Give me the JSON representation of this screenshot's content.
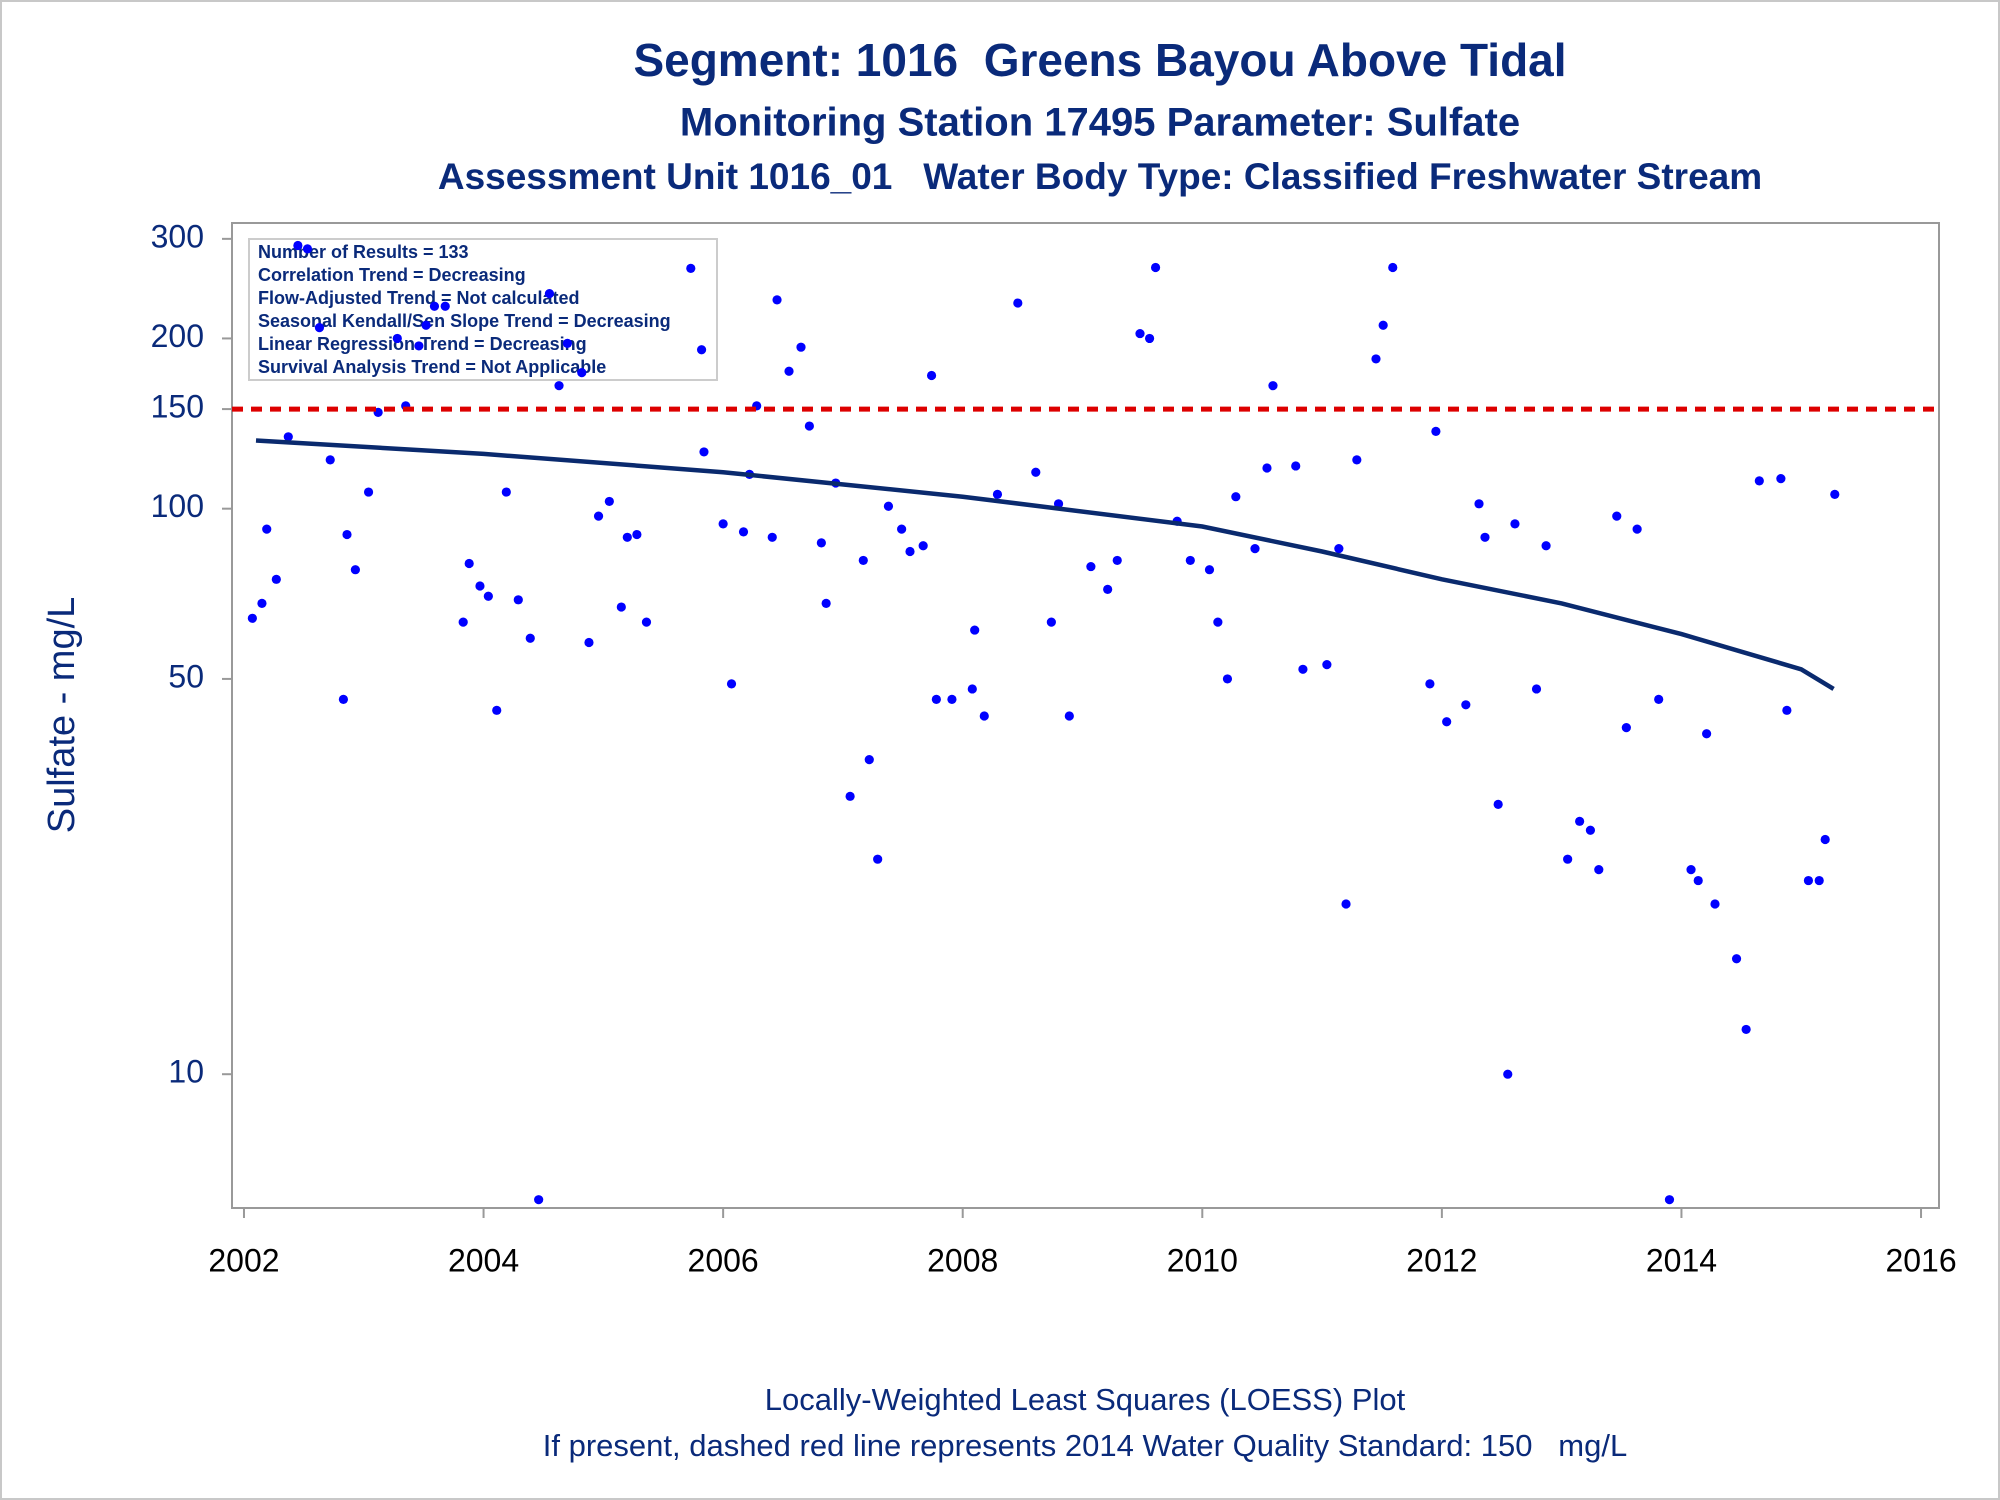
{
  "chart_data": {
    "type": "scatter",
    "title": "Segment: 1016  Greens Bayou Above Tidal",
    "subtitles": [
      "Monitoring Station 17495 Parameter: Sulfate",
      "Assessment Unit 1016_01   Water Body Type: Classified Freshwater Stream"
    ],
    "ylabel": "Sulfate - mg/L",
    "yscale": "log",
    "xlim": [
      2001.9,
      2016.15
    ],
    "xticks": [
      2002,
      2004,
      2006,
      2008,
      2010,
      2012,
      2014,
      2016
    ],
    "ylim": [
      5.8,
      320
    ],
    "yticks": [
      10,
      50,
      100,
      150,
      200,
      300
    ],
    "annotations": [
      "Number of Results = 133",
      "Correlation Trend = Decreasing",
      "Flow-Adjusted Trend = Not calculated",
      "Seasonal Kendall/Sen Slope Trend = Decreasing",
      "Linear Regression Trend = Decreasing",
      "Survival Analysis Trend = Not Applicable"
    ],
    "footnotes": [
      "Locally-Weighted Least Squares (LOESS) Plot",
      "If present, dashed red line represents 2014 Water Quality Standard: 150   mg/L"
    ],
    "reference_line": {
      "value": 150,
      "color": "#dd0000"
    },
    "series": [
      {
        "type": "scatter",
        "color": "#0000ff",
        "x": [
          2002.07,
          2002.15,
          2002.19,
          2002.27,
          2002.37,
          2002.45,
          2002.53,
          2002.63,
          2002.72,
          2002.83,
          2002.86,
          2002.93,
          2003.04,
          2003.12,
          2003.28,
          2003.35,
          2003.46,
          2003.52,
          2003.59,
          2003.68,
          2003.83,
          2003.88,
          2003.97,
          2004.04,
          2004.11,
          2004.19,
          2004.29,
          2004.39,
          2004.46,
          2004.55,
          2004.63,
          2004.7,
          2004.82,
          2004.88,
          2004.96,
          2005.05,
          2005.15,
          2005.2,
          2005.28,
          2005.36,
          2005.73,
          2005.82,
          2005.84,
          2006.0,
          2006.07,
          2006.17,
          2006.22,
          2006.28,
          2006.41,
          2006.45,
          2006.55,
          2006.65,
          2006.72,
          2006.82,
          2006.86,
          2006.94,
          2007.06,
          2007.17,
          2007.22,
          2007.29,
          2007.38,
          2007.49,
          2007.56,
          2007.67,
          2007.74,
          2007.78,
          2007.91,
          2008.08,
          2008.1,
          2008.18,
          2008.29,
          2008.46,
          2008.61,
          2008.74,
          2008.8,
          2008.89,
          2009.07,
          2009.21,
          2009.29,
          2009.48,
          2009.56,
          2009.61,
          2009.79,
          2009.9,
          2010.06,
          2010.13,
          2010.21,
          2010.28,
          2010.44,
          2010.54,
          2010.59,
          2010.78,
          2010.84,
          2011.04,
          2011.14,
          2011.2,
          2011.29,
          2011.45,
          2011.51,
          2011.59,
          2011.9,
          2011.95,
          2012.04,
          2012.2,
          2012.31,
          2012.36,
          2012.47,
          2012.55,
          2012.61,
          2012.79,
          2012.87,
          2013.05,
          2013.15,
          2013.24,
          2013.31,
          2013.46,
          2013.54,
          2013.63,
          2013.81,
          2013.9,
          2014.08,
          2014.14,
          2014.21,
          2014.28,
          2014.46,
          2014.54,
          2014.65,
          2014.83,
          2014.88,
          2015.06,
          2015.15,
          2015.2,
          2015.28
        ],
        "values": [
          64,
          68,
          92,
          75,
          134,
          292,
          288,
          209,
          122,
          46,
          90,
          78,
          107,
          148,
          200,
          152,
          194,
          211,
          228,
          228,
          63,
          80,
          73,
          70,
          44,
          107,
          69,
          59,
          6,
          240,
          165,
          196,
          174,
          58,
          97,
          103,
          67,
          89,
          90,
          63,
          266,
          191,
          126,
          94,
          49,
          91,
          115,
          152,
          89,
          234,
          175,
          193,
          140,
          87,
          68,
          111,
          31,
          81,
          36,
          24,
          101,
          92,
          84,
          86,
          172,
          46,
          46,
          48,
          61,
          43,
          106,
          231,
          116,
          63,
          102,
          43,
          79,
          72,
          81,
          204,
          200,
          267,
          95,
          81,
          78,
          63,
          50,
          105,
          85,
          118,
          165,
          119,
          52,
          53,
          85,
          20,
          122,
          184,
          211,
          267,
          49,
          137,
          42,
          45,
          102,
          89,
          30,
          10,
          94,
          48,
          86,
          24,
          28,
          27,
          23,
          97,
          41,
          92,
          46,
          6,
          23,
          22,
          40,
          20,
          16,
          12,
          112,
          113,
          44,
          22,
          22,
          26,
          106
        ]
      },
      {
        "type": "line",
        "color": "#0a2a6e",
        "x": [
          2002.1,
          2004,
          2006,
          2008,
          2010,
          2011,
          2012,
          2013,
          2014,
          2015,
          2015.27
        ],
        "values": [
          132,
          125,
          116,
          105,
          93,
          84,
          75,
          68,
          60,
          52,
          48
        ]
      }
    ]
  }
}
